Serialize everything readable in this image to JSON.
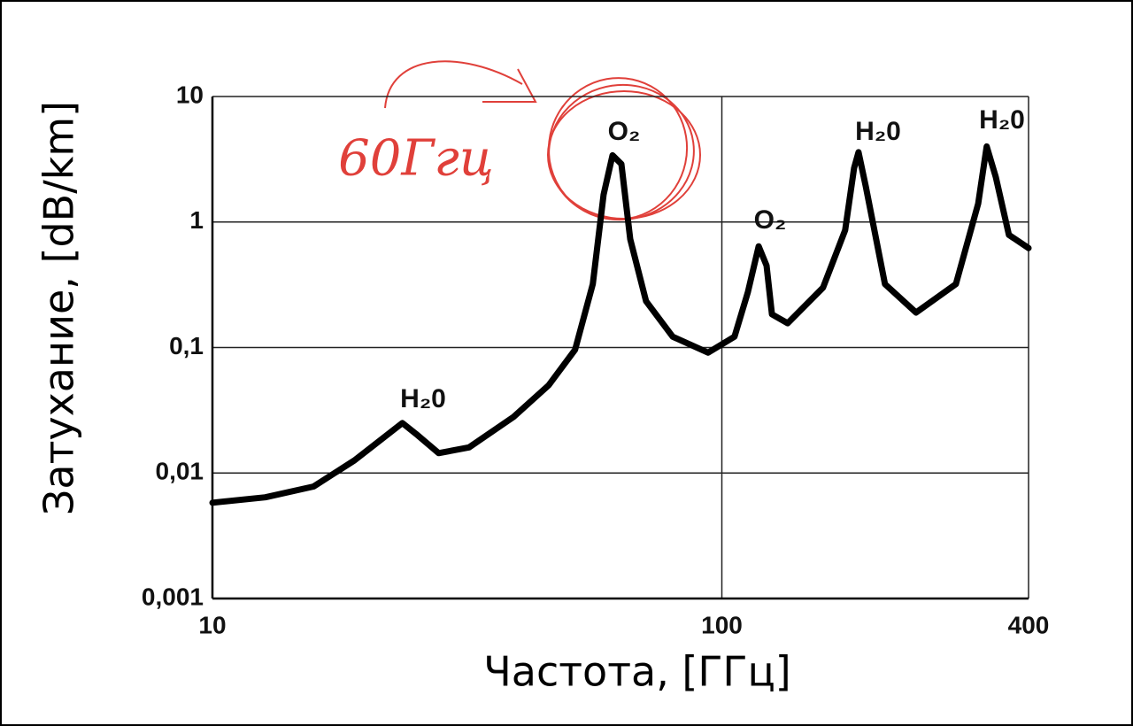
{
  "chart_data": {
    "type": "line",
    "x_label": "Частота, [ГГц]",
    "y_label": "Затухание, [dB/km]",
    "x_log": true,
    "y_log": true,
    "grid": true,
    "xlim": [
      10,
      400
    ],
    "ylim": [
      0.001,
      10
    ],
    "xticks": [
      10,
      100,
      400
    ],
    "yticks": [
      {
        "value": 0.001,
        "label": "0,001"
      },
      {
        "value": 0.01,
        "label": "0,01"
      },
      {
        "value": 0.1,
        "label": "0,1"
      },
      1,
      10
    ],
    "x": [
      10,
      12.7,
      15.8,
      19,
      23.6,
      25.1,
      27.8,
      31.9,
      39,
      45.7,
      51.5,
      55.8,
      58.6,
      61,
      63.5,
      66.1,
      71,
      80.1,
      94,
      105.9,
      112.5,
      118.1,
      122.4,
      125.4,
      134.6,
      158,
      174.6,
      181.8,
      185.5,
      191.6,
      209,
      240.6,
      288,
      318.6,
      331,
      345,
      366,
      400
    ],
    "series": [
      {
        "color": "#000000",
        "values": [
          0.0058,
          0.0064,
          0.0078,
          0.0126,
          0.025,
          0.0205,
          0.0144,
          0.016,
          0.028,
          0.05,
          0.096,
          0.32,
          1.65,
          3.4,
          2.9,
          0.73,
          0.234,
          0.122,
          0.091,
          0.122,
          0.276,
          0.64,
          0.45,
          0.184,
          0.156,
          0.3,
          0.86,
          2.69,
          3.6,
          1.94,
          0.32,
          0.19,
          0.32,
          1.4,
          4.0,
          2.28,
          0.79,
          0.62
        ]
      }
    ],
    "annotations": [
      {
        "text": "H₂0"
      },
      {
        "text": "O₂"
      },
      {
        "text": "O₂"
      },
      {
        "text": "H₂0"
      },
      {
        "text": "H₂0"
      },
      {
        "text": "60Ггц",
        "color": "#e0403a"
      }
    ]
  }
}
